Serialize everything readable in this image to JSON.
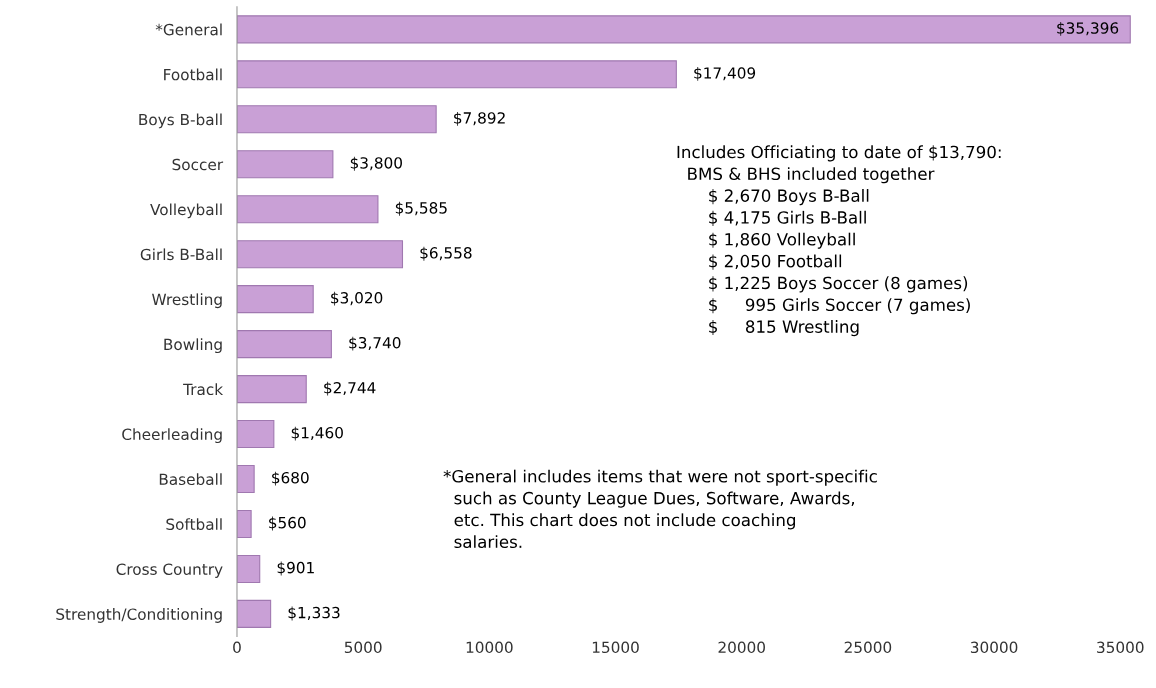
{
  "chart_data": {
    "type": "bar",
    "orientation": "horizontal",
    "categories": [
      "*General",
      "Football",
      "Boys B-ball",
      "Soccer",
      "Volleyball",
      "Girls B-Ball",
      "Wrestling",
      "Bowling",
      "Track",
      "Cheerleading",
      "Baseball",
      "Softball",
      "Cross Country",
      "Strength/Conditioning"
    ],
    "values": [
      35396,
      17409,
      7892,
      3800,
      5585,
      6558,
      3020,
      3740,
      2744,
      1460,
      680,
      560,
      901,
      1333
    ],
    "value_labels": [
      "$35,396",
      "$17,409",
      "$7,892",
      "$3,800",
      "$5,585",
      "$6,558",
      "$3,020",
      "$3,740",
      "$2,744",
      "$1,460",
      "$680",
      "$560",
      "$901",
      "$1,333"
    ],
    "color": "#c9a0d6",
    "xlim": [
      0,
      35500
    ],
    "xticks": [
      0,
      5000,
      10000,
      15000,
      20000,
      25000,
      30000,
      35000
    ],
    "grid": false,
    "legend": false,
    "annotations": [
      "Includes Officiating to date of $13,790:\n  BMS & BHS included together\n      $ 2,670 Boys B-Ball\n      $ 4,175 Girls B-Ball\n      $ 1,860 Volleyball\n      $ 2,050 Football\n      $ 1,225 Boys Soccer (8 games)\n      $     995 Girls Soccer (7 games)\n      $     815 Wrestling",
      "*General includes items that were not sport-specific\n  such as County League Dues, Software, Awards,\n  etc. This chart does not include coaching\n  salaries."
    ]
  }
}
